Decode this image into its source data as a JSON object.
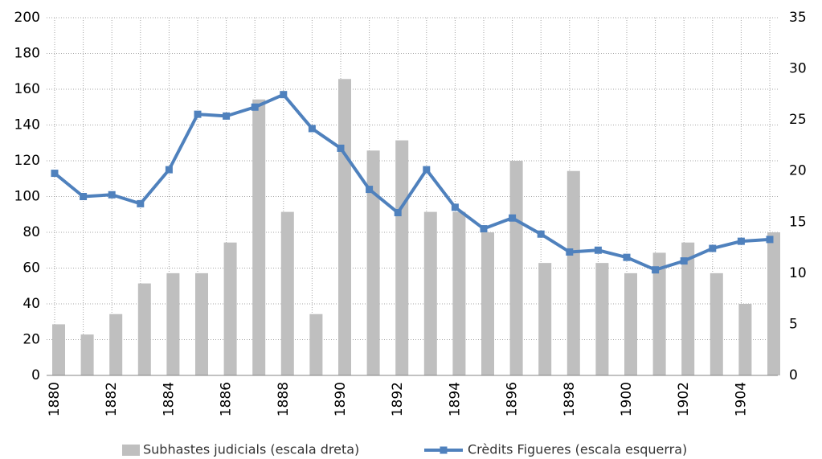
{
  "chart_data": {
    "type": "bar-line",
    "categories": [
      "1880",
      null,
      "1882",
      null,
      "1884",
      null,
      "1886",
      null,
      "1888",
      null,
      "1890",
      null,
      "1892",
      null,
      "1894",
      null,
      "1896",
      null,
      "1898",
      null,
      "1900",
      null,
      "1902",
      null,
      "1904",
      null
    ],
    "series": [
      {
        "name": "Subhastes judicials (escala dreta)",
        "type": "bar",
        "axis": "y2",
        "color": "#bfbfbf",
        "values": [
          5,
          4,
          6,
          9,
          10,
          10,
          13,
          27,
          16,
          6,
          29,
          22,
          23,
          16,
          16,
          14,
          21,
          11,
          20,
          11,
          10,
          12,
          13,
          10,
          7,
          14
        ]
      },
      {
        "name": "Crèdits Figueres (escala esquerra)",
        "type": "line",
        "axis": "y",
        "color": "#4f81bd",
        "values": [
          113,
          100,
          101,
          96,
          115,
          146,
          145,
          150,
          157,
          138,
          127,
          104,
          91,
          115,
          94,
          82,
          88,
          79,
          69,
          70,
          66,
          59,
          64,
          71,
          75,
          76
        ]
      }
    ],
    "ylim": [
      0,
      200
    ],
    "yticks": [
      0,
      20,
      40,
      60,
      80,
      100,
      120,
      140,
      160,
      180,
      200
    ],
    "y2lim": [
      0,
      35
    ],
    "y2ticks": [
      0,
      5,
      10,
      15,
      20,
      25,
      30,
      35
    ],
    "grid": true,
    "legend": "bottom"
  }
}
